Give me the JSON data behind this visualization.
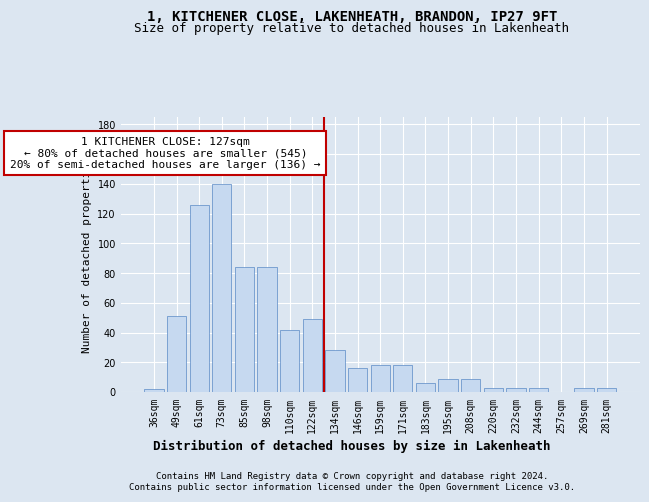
{
  "title_line1": "1, KITCHENER CLOSE, LAKENHEATH, BRANDON, IP27 9FT",
  "title_line2": "Size of property relative to detached houses in Lakenheath",
  "xlabel": "Distribution of detached houses by size in Lakenheath",
  "ylabel": "Number of detached properties",
  "footnote1": "Contains HM Land Registry data © Crown copyright and database right 2024.",
  "footnote2": "Contains public sector information licensed under the Open Government Licence v3.0.",
  "annotation_line1": "1 KITCHENER CLOSE: 127sqm",
  "annotation_line2": "← 80% of detached houses are smaller (545)",
  "annotation_line3": "20% of semi-detached houses are larger (136) →",
  "bar_labels": [
    "36sqm",
    "49sqm",
    "61sqm",
    "73sqm",
    "85sqm",
    "98sqm",
    "110sqm",
    "122sqm",
    "134sqm",
    "146sqm",
    "159sqm",
    "171sqm",
    "183sqm",
    "195sqm",
    "208sqm",
    "220sqm",
    "232sqm",
    "244sqm",
    "257sqm",
    "269sqm",
    "281sqm"
  ],
  "bar_values": [
    2,
    51,
    126,
    140,
    84,
    84,
    42,
    49,
    28,
    16,
    18,
    18,
    6,
    9,
    9,
    3,
    3,
    3,
    0,
    3,
    3
  ],
  "bar_color": "#c6d9f0",
  "bar_edge_color": "#5a8ac6",
  "vline_x": 7.5,
  "vline_color": "#c00000",
  "ylim": [
    0,
    185
  ],
  "yticks": [
    0,
    20,
    40,
    60,
    80,
    100,
    120,
    140,
    160,
    180
  ],
  "background_color": "#dce6f1",
  "plot_bg_color": "#dce6f1",
  "grid_color": "#ffffff",
  "title_fontsize": 10,
  "subtitle_fontsize": 9,
  "ylabel_fontsize": 8,
  "xlabel_fontsize": 9,
  "tick_fontsize": 7,
  "annotation_fontsize": 8,
  "footer_fontsize": 6.5
}
